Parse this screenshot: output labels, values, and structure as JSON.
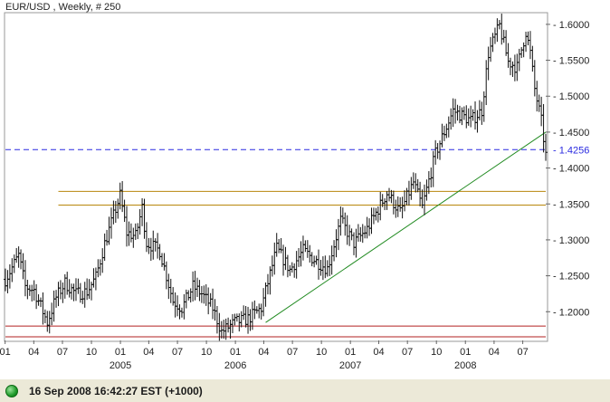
{
  "chart_data": {
    "type": "ohlc",
    "title": "EUR/USD , Weekly, # 250",
    "frequency": "weekly",
    "x_range": [
      "2004-01-02",
      "2008-09-12"
    ],
    "ylim": [
      1.16,
      1.615
    ],
    "y_ticks": [
      "1.6000",
      "1.5500",
      "1.5000",
      "1.4500",
      "1.4000",
      "1.3500",
      "1.3000",
      "1.2500",
      "1.2000"
    ],
    "x_month_ticks": [
      {
        "date": "2004-01-01",
        "label": "01"
      },
      {
        "date": "2004-04-01",
        "label": "04"
      },
      {
        "date": "2004-07-01",
        "label": "07"
      },
      {
        "date": "2004-10-01",
        "label": "10"
      },
      {
        "date": "2005-01-01",
        "label": "01"
      },
      {
        "date": "2005-04-01",
        "label": "04"
      },
      {
        "date": "2005-07-01",
        "label": "07"
      },
      {
        "date": "2005-10-01",
        "label": "10"
      },
      {
        "date": "2006-01-01",
        "label": "01"
      },
      {
        "date": "2006-04-01",
        "label": "04"
      },
      {
        "date": "2006-07-01",
        "label": "07"
      },
      {
        "date": "2006-10-01",
        "label": "10"
      },
      {
        "date": "2007-01-01",
        "label": "01"
      },
      {
        "date": "2007-04-01",
        "label": "04"
      },
      {
        "date": "2007-07-01",
        "label": "07"
      },
      {
        "date": "2007-10-01",
        "label": "10"
      },
      {
        "date": "2008-01-01",
        "label": "01"
      },
      {
        "date": "2008-04-01",
        "label": "04"
      },
      {
        "date": "2008-07-01",
        "label": "07"
      }
    ],
    "x_year_labels": [
      {
        "date": "2005-01-01",
        "label": "2005"
      },
      {
        "date": "2006-01-01",
        "label": "2006"
      },
      {
        "date": "2007-01-01",
        "label": "2007"
      },
      {
        "date": "2008-01-01",
        "label": "2008"
      }
    ],
    "anchor_closes": [
      [
        "2004-01-02",
        1.245
      ],
      [
        "2004-02-13",
        1.278
      ],
      [
        "2004-03-05",
        1.235
      ],
      [
        "2004-04-02",
        1.23
      ],
      [
        "2004-05-14",
        1.185
      ],
      [
        "2004-06-11",
        1.22
      ],
      [
        "2004-07-09",
        1.24
      ],
      [
        "2004-08-13",
        1.225
      ],
      [
        "2004-09-17",
        1.228
      ],
      [
        "2004-10-15",
        1.248
      ],
      [
        "2004-11-12",
        1.295
      ],
      [
        "2004-12-31",
        1.362
      ],
      [
        "2005-01-21",
        1.31
      ],
      [
        "2005-02-18",
        1.305
      ],
      [
        "2005-03-11",
        1.345
      ],
      [
        "2005-03-25",
        1.296
      ],
      [
        "2005-05-06",
        1.285
      ],
      [
        "2005-06-17",
        1.215
      ],
      [
        "2005-07-15",
        1.205
      ],
      [
        "2005-08-19",
        1.235
      ],
      [
        "2005-09-16",
        1.225
      ],
      [
        "2005-10-21",
        1.205
      ],
      [
        "2005-11-18",
        1.172
      ],
      [
        "2005-12-30",
        1.185
      ],
      [
        "2006-02-10",
        1.19
      ],
      [
        "2006-03-24",
        1.205
      ],
      [
        "2006-05-12",
        1.288
      ],
      [
        "2006-06-23",
        1.258
      ],
      [
        "2006-08-04",
        1.285
      ],
      [
        "2006-09-15",
        1.27
      ],
      [
        "2006-10-20",
        1.26
      ],
      [
        "2006-12-01",
        1.327
      ],
      [
        "2007-01-12",
        1.295
      ],
      [
        "2007-02-23",
        1.315
      ],
      [
        "2007-04-27",
        1.365
      ],
      [
        "2007-06-08",
        1.338
      ],
      [
        "2007-07-20",
        1.38
      ],
      [
        "2007-08-17",
        1.345
      ],
      [
        "2007-09-28",
        1.42
      ],
      [
        "2007-11-23",
        1.48
      ],
      [
        "2008-01-18",
        1.466
      ],
      [
        "2008-02-22",
        1.48
      ],
      [
        "2008-03-14",
        1.56
      ],
      [
        "2008-04-18",
        1.598
      ],
      [
        "2008-05-16",
        1.548
      ],
      [
        "2008-06-13",
        1.54
      ],
      [
        "2008-07-11",
        1.59
      ],
      [
        "2008-07-25",
        1.56
      ],
      [
        "2008-08-08",
        1.51
      ],
      [
        "2008-08-29",
        1.465
      ],
      [
        "2008-09-12",
        1.418
      ]
    ],
    "horizontal_lines": [
      {
        "kind": "resistance",
        "value": 1.3675,
        "color": "#b8860b"
      },
      {
        "kind": "resistance",
        "value": 1.3485,
        "color": "#b8860b"
      },
      {
        "kind": "support",
        "value": 1.18,
        "color": "#b22222"
      },
      {
        "kind": "support",
        "value": 1.165,
        "color": "#b22222"
      },
      {
        "kind": "last-price",
        "value": 1.4256,
        "color": "#2a2ae0",
        "label": "1.4256"
      }
    ],
    "trend_line": {
      "x1": "2006-04-07",
      "y1": 1.185,
      "x2": "2008-09-12",
      "y2": 1.45,
      "color": "#228b22"
    },
    "grid": false,
    "xlabel": "",
    "ylabel": ""
  },
  "status": {
    "timestamp": "16 Sep 2008 16:42:27  EST (+1000)",
    "indicator_color": "#1f9a2a"
  }
}
